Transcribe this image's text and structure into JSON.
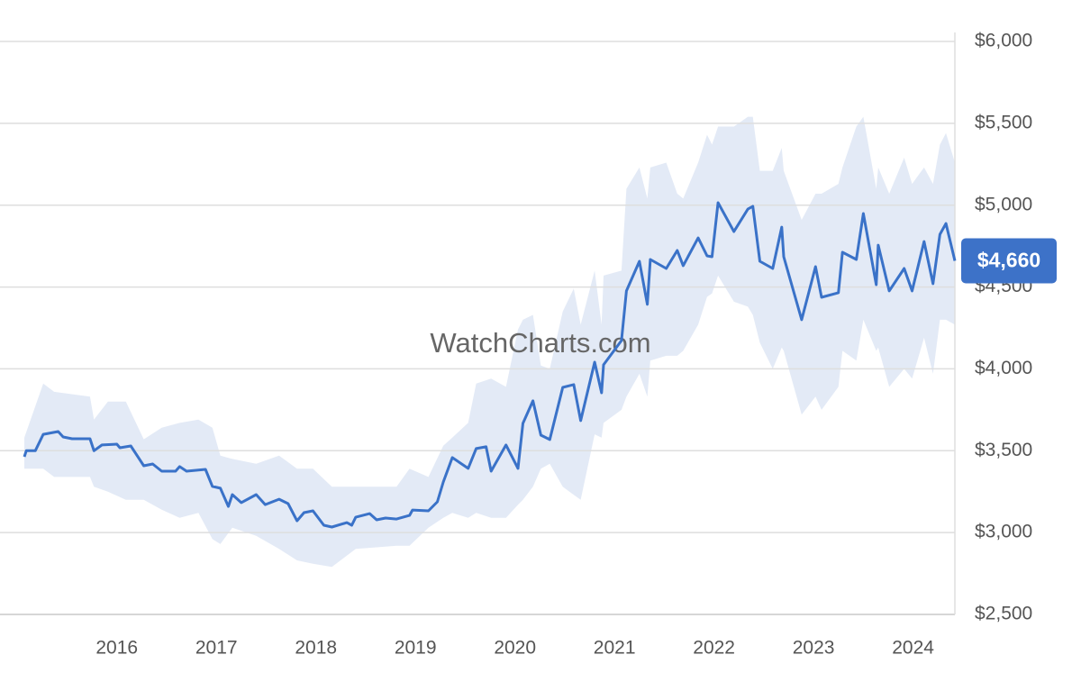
{
  "chart_data": {
    "type": "line",
    "watermark": "WatchCharts.com",
    "xlim": [
      2015.07,
      2024.42
    ],
    "xticks": [
      2016,
      2017,
      2018,
      2019,
      2020,
      2021,
      2022,
      2023,
      2024
    ],
    "ylim": [
      2500,
      6000
    ],
    "yticks": [
      {
        "value": 2500,
        "label": "$2,500"
      },
      {
        "value": 3000,
        "label": "$3,000"
      },
      {
        "value": 3500,
        "label": "$3,500"
      },
      {
        "value": 4000,
        "label": "$4,000"
      },
      {
        "value": 4500,
        "label": "$4,500"
      },
      {
        "value": 5000,
        "label": "$5,000"
      },
      {
        "value": 5500,
        "label": "$5,500"
      },
      {
        "value": 6000,
        "label": "$6,000"
      }
    ],
    "grid": true,
    "series": [
      {
        "color": "#3a72c8",
        "x": [
          2015.07,
          2015.09,
          2015.18,
          2015.26,
          2015.41,
          2015.46,
          2015.55,
          2015.73,
          2015.77,
          2015.85,
          2016.0,
          2016.03,
          2016.14,
          2016.27,
          2016.36,
          2016.45,
          2016.59,
          2016.63,
          2016.7,
          2016.89,
          2016.96,
          2017.04,
          2017.12,
          2017.16,
          2017.25,
          2017.4,
          2017.49,
          2017.63,
          2017.72,
          2017.81,
          2017.88,
          2017.97,
          2018.08,
          2018.16,
          2018.31,
          2018.36,
          2018.4,
          2018.54,
          2018.61,
          2018.7,
          2018.81,
          2018.94,
          2018.97,
          2019.13,
          2019.22,
          2019.28,
          2019.37,
          2019.53,
          2019.61,
          2019.71,
          2019.76,
          2019.91,
          2020.03,
          2020.08,
          2020.18,
          2020.26,
          2020.35,
          2020.48,
          2020.59,
          2020.66,
          2020.8,
          2020.87,
          2020.89,
          2021.07,
          2021.12,
          2021.25,
          2021.33,
          2021.36,
          2021.52,
          2021.63,
          2021.69,
          2021.84,
          2021.93,
          2021.98,
          2022.04,
          2022.2,
          2022.34,
          2022.39,
          2022.46,
          2022.59,
          2022.68,
          2022.7,
          2022.88,
          2023.02,
          2023.08,
          2023.25,
          2023.29,
          2023.43,
          2023.5,
          2023.63,
          2023.65,
          2023.76,
          2023.91,
          2023.99,
          2024.11,
          2024.2,
          2024.27,
          2024.33,
          2024.42
        ],
        "values": [
          3463,
          3500,
          3500,
          3600,
          3617,
          3584,
          3573,
          3573,
          3500,
          3535,
          3540,
          3518,
          3529,
          3408,
          3419,
          3375,
          3375,
          3403,
          3375,
          3386,
          3282,
          3271,
          3160,
          3232,
          3183,
          3232,
          3171,
          3204,
          3177,
          3072,
          3122,
          3133,
          3045,
          3034,
          3061,
          3045,
          3094,
          3116,
          3078,
          3089,
          3083,
          3105,
          3138,
          3133,
          3188,
          3309,
          3458,
          3392,
          3513,
          3524,
          3375,
          3535,
          3392,
          3667,
          3805,
          3595,
          3568,
          3887,
          3904,
          3684,
          4041,
          3854,
          4025,
          4173,
          4476,
          4657,
          4394,
          4668,
          4613,
          4723,
          4630,
          4800,
          4690,
          4685,
          5015,
          4839,
          4976,
          4993,
          4657,
          4613,
          4866,
          4685,
          4300,
          4624,
          4437,
          4465,
          4712,
          4668,
          4949,
          4514,
          4756,
          4476,
          4613,
          4476,
          4778,
          4520,
          4822,
          4888,
          4660
        ]
      }
    ],
    "band": {
      "color": "#e3eaf6",
      "x": [
        2015.07,
        2015.26,
        2015.37,
        2015.73,
        2015.77,
        2015.91,
        2016.09,
        2016.27,
        2016.45,
        2016.63,
        2016.82,
        2016.96,
        2017.04,
        2017.16,
        2017.4,
        2017.63,
        2017.81,
        2017.97,
        2018.16,
        2018.4,
        2018.61,
        2018.81,
        2018.94,
        2019.13,
        2019.28,
        2019.37,
        2019.53,
        2019.61,
        2019.76,
        2019.91,
        2020.03,
        2020.08,
        2020.18,
        2020.26,
        2020.35,
        2020.48,
        2020.59,
        2020.66,
        2020.8,
        2020.87,
        2020.89,
        2021.07,
        2021.12,
        2021.25,
        2021.33,
        2021.36,
        2021.52,
        2021.63,
        2021.69,
        2021.84,
        2021.93,
        2021.98,
        2022.04,
        2022.2,
        2022.34,
        2022.39,
        2022.46,
        2022.59,
        2022.68,
        2022.7,
        2022.88,
        2023.02,
        2023.08,
        2023.25,
        2023.29,
        2023.43,
        2023.5,
        2023.63,
        2023.65,
        2023.76,
        2023.91,
        2023.99,
        2024.11,
        2024.2,
        2024.27,
        2024.33,
        2024.42
      ],
      "high": [
        3580,
        3910,
        3860,
        3830,
        3690,
        3800,
        3800,
        3570,
        3640,
        3670,
        3690,
        3640,
        3470,
        3450,
        3420,
        3470,
        3390,
        3390,
        3280,
        3280,
        3280,
        3280,
        3390,
        3340,
        3530,
        3580,
        3670,
        3910,
        3940,
        3890,
        4240,
        4300,
        4330,
        4020,
        4000,
        4350,
        4490,
        4270,
        4600,
        4270,
        4570,
        4600,
        5100,
        5230,
        5040,
        5230,
        5260,
        5070,
        5040,
        5260,
        5430,
        5370,
        5480,
        5480,
        5540,
        5540,
        5210,
        5210,
        5350,
        5210,
        4910,
        5070,
        5070,
        5130,
        5230,
        5480,
        5540,
        5100,
        5230,
        5070,
        5290,
        5130,
        5230,
        5130,
        5370,
        5440,
        5260
      ],
      "low": [
        3390,
        3390,
        3340,
        3340,
        3280,
        3250,
        3200,
        3200,
        3140,
        3090,
        3120,
        2960,
        2930,
        3030,
        2980,
        2900,
        2830,
        2810,
        2790,
        2900,
        2910,
        2920,
        2920,
        3030,
        3090,
        3120,
        3090,
        3120,
        3090,
        3090,
        3170,
        3200,
        3280,
        3390,
        3420,
        3280,
        3230,
        3200,
        3600,
        3580,
        3670,
        3750,
        3830,
        3970,
        3830,
        4050,
        4080,
        4080,
        4110,
        4270,
        4440,
        4460,
        4570,
        4410,
        4380,
        4330,
        4160,
        4000,
        4130,
        4110,
        3720,
        3830,
        3750,
        3890,
        4110,
        4050,
        4300,
        4110,
        4130,
        3890,
        4000,
        3940,
        4190,
        3970,
        4300,
        4300,
        4270
      ]
    },
    "annotations": [
      {
        "text": "$4,660",
        "value": 4660,
        "color": "#3d72c8"
      }
    ]
  }
}
